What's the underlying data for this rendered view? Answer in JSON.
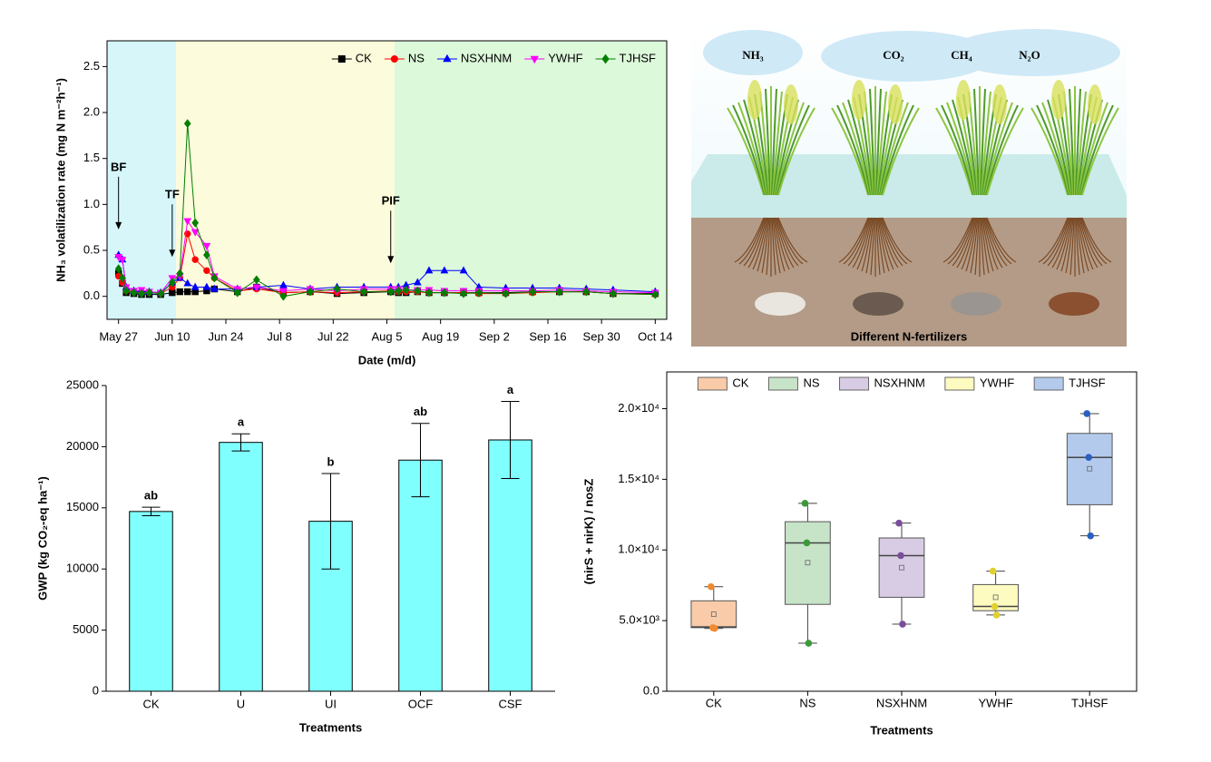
{
  "chart_data": [
    {
      "type": "line",
      "xlabel": "Date (m/d)",
      "ylabel": "NH₃ volatilization rate (mg N m⁻²h⁻¹)",
      "x": [
        "May 27",
        "May 28",
        "May 29",
        "May 31",
        "Jun 2",
        "Jun 4",
        "Jun 7",
        "Jun 10",
        "Jun 12",
        "Jun 14",
        "Jun 16",
        "Jun 19",
        "Jun 21",
        "Jun 27",
        "Jul 2",
        "Jul 9",
        "Jul 16",
        "Jul 23",
        "Jul 30",
        "Aug 6",
        "Aug 8",
        "Aug 10",
        "Aug 13",
        "Aug 16",
        "Aug 20",
        "Aug 25",
        "Aug 29",
        "Sep 5",
        "Sep 12",
        "Sep 19",
        "Sep 26",
        "Oct 3",
        "Oct 14"
      ],
      "xlim": [
        "May 24",
        "Oct 17"
      ],
      "xticks": [
        "May 27",
        "Jun 10",
        "Jun 24",
        "Jul 8",
        "Jul 22",
        "Aug 5",
        "Aug 19",
        "Sep 2",
        "Sep 16",
        "Sep 30",
        "Oct 14"
      ],
      "ylim": [
        -0.25,
        2.78
      ],
      "yticks": [
        {
          "value": 0,
          "label": "0.0"
        },
        0.5,
        {
          "value": 1,
          "label": "1.0"
        },
        1.5,
        {
          "value": 2,
          "label": "2.0"
        },
        2.5
      ],
      "legend": "top-right",
      "phases": [
        {
          "start": "May 24",
          "end": "Jun 11",
          "color": "#d6f6fa"
        },
        {
          "start": "Jun 11",
          "end": "Aug 7",
          "color": "#fcfbdb"
        },
        {
          "start": "Aug 7",
          "end": "Oct 17",
          "color": "#dcf9da"
        }
      ],
      "annotations": [
        {
          "text": "BF",
          "x": "May 27",
          "y": 1.4
        },
        {
          "text": "TF",
          "x": "Jun 10",
          "y": 1.1
        },
        {
          "text": "PIF",
          "x": "Aug 6",
          "y": 1.03
        }
      ],
      "series": [
        {
          "name": "CK",
          "color": "#000000",
          "marker": "square",
          "values": [
            0.25,
            0.14,
            0.04,
            0.03,
            0.02,
            0.02,
            0.02,
            0.04,
            0.05,
            0.05,
            0.05,
            0.06,
            0.08,
            0.05,
            0.1,
            0.04,
            0.05,
            0.03,
            0.04,
            0.05,
            0.04,
            0.04,
            0.05,
            0.04,
            0.04,
            0.04,
            0.04,
            0.04,
            0.05,
            0.05,
            0.05,
            0.03,
            0.03
          ]
        },
        {
          "name": "NS",
          "color": "#ff0000",
          "marker": "circle",
          "values": [
            0.22,
            0.15,
            0.06,
            0.05,
            0.04,
            0.04,
            0.03,
            0.1,
            0.2,
            0.68,
            0.4,
            0.28,
            0.2,
            0.06,
            0.08,
            0.04,
            0.05,
            0.04,
            0.05,
            0.06,
            0.05,
            0.05,
            0.05,
            0.04,
            0.04,
            0.04,
            0.03,
            0.03,
            0.04,
            0.05,
            0.05,
            0.03,
            0.02
          ]
        },
        {
          "name": "NSXHNM",
          "color": "#0000ff",
          "marker": "triangle",
          "values": [
            0.45,
            0.4,
            0.1,
            0.06,
            0.05,
            0.05,
            0.04,
            0.15,
            0.2,
            0.14,
            0.1,
            0.1,
            0.08,
            0.08,
            0.1,
            0.12,
            0.08,
            0.1,
            0.1,
            0.1,
            0.1,
            0.12,
            0.15,
            0.28,
            0.28,
            0.28,
            0.1,
            0.09,
            0.09,
            0.09,
            0.08,
            0.07,
            0.05
          ]
        },
        {
          "name": "YWHF",
          "color": "#ff00ff",
          "marker": "triangle-down",
          "values": [
            0.43,
            0.4,
            0.1,
            0.06,
            0.07,
            0.05,
            0.04,
            0.2,
            0.22,
            0.82,
            0.7,
            0.55,
            0.22,
            0.08,
            0.1,
            0.06,
            0.08,
            0.06,
            0.08,
            0.08,
            0.08,
            0.07,
            0.07,
            0.07,
            0.06,
            0.06,
            0.06,
            0.06,
            0.06,
            0.07,
            0.06,
            0.05,
            0.04
          ]
        },
        {
          "name": "TJHSF",
          "color": "#008000",
          "marker": "diamond",
          "values": [
            0.3,
            0.2,
            0.06,
            0.04,
            0.03,
            0.04,
            0.03,
            0.15,
            0.25,
            1.88,
            0.8,
            0.45,
            0.2,
            0.04,
            0.18,
            0,
            0.05,
            0.08,
            0.05,
            0.05,
            0.06,
            0.07,
            0.06,
            0.04,
            0.04,
            0.03,
            0.04,
            0.03,
            0.05,
            0.05,
            0.05,
            0.03,
            0.02
          ]
        }
      ]
    },
    {
      "type": "bar",
      "xlabel": "Treatments",
      "ylabel": "GWP (kg CO₂-eq ha⁻¹)",
      "categories": [
        "CK",
        "U",
        "UI",
        "OCF",
        "CSF"
      ],
      "values": [
        14700,
        20350,
        13900,
        18900,
        20550
      ],
      "errors": [
        350,
        700,
        3900,
        3000,
        3150
      ],
      "letters": [
        "ab",
        "a",
        "b",
        "ab",
        "a"
      ],
      "color": "#80ffff",
      "ylim": [
        0,
        25000
      ],
      "yticks": [
        0,
        5000,
        10000,
        15000,
        20000,
        25000
      ]
    },
    {
      "type": "box",
      "xlabel": "Treatments",
      "ylabel": "(nirS + nirK) / nosZ",
      "categories": [
        "CK",
        "NS",
        "NSXHNM",
        "YWHF",
        "TJHSF"
      ],
      "colors": [
        "#f9cba9",
        "#c8e4c8",
        "#d8cce4",
        "#fdfbbf",
        "#b4caec"
      ],
      "point_colors": [
        "#f08a30",
        "#3a9a3a",
        "#7a4f9a",
        "#e0d030",
        "#2a60c0"
      ],
      "legend": "top",
      "stats": [
        {
          "min": 4450,
          "q1": 4500,
          "median": 4550,
          "q3": 6400,
          "max": 7400,
          "mean": 5450,
          "points": [
            7400,
            4500,
            4450
          ]
        },
        {
          "min": 3400,
          "q1": 6150,
          "median": 10500,
          "q3": 12000,
          "max": 13300,
          "mean": 9100,
          "points": [
            13300,
            10500,
            3400
          ]
        },
        {
          "min": 4750,
          "q1": 6650,
          "median": 9600,
          "q3": 10850,
          "max": 11900,
          "mean": 8750,
          "points": [
            11900,
            9600,
            4750
          ]
        },
        {
          "min": 5400,
          "q1": 5700,
          "median": 6000,
          "q3": 7550,
          "max": 8500,
          "mean": 6650,
          "points": [
            8500,
            6000,
            5400
          ]
        },
        {
          "min": 11000,
          "q1": 13200,
          "median": 16550,
          "q3": 18250,
          "max": 19650,
          "mean": 15750,
          "points": [
            19650,
            16550,
            11000
          ]
        }
      ],
      "ylim": [
        0,
        22600
      ],
      "yticks": [
        {
          "value": 0,
          "label": "0.0"
        },
        {
          "value": 5000,
          "label": "5.0×10³"
        },
        {
          "value": 10000,
          "label": "1.0×10⁴"
        },
        {
          "value": 15000,
          "label": "1.5×10⁴"
        },
        {
          "value": 20000,
          "label": "2.0×10⁴"
        }
      ]
    }
  ],
  "illustration": {
    "gases": [
      "NH₃",
      "CO₂",
      "CH₄",
      "N₂O"
    ],
    "caption": "Different N-fertilizers"
  }
}
